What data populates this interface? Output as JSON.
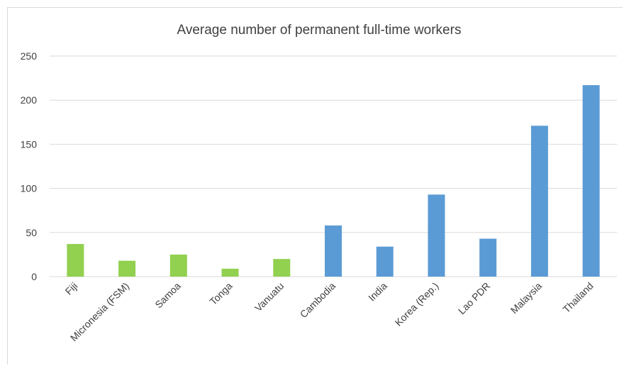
{
  "chart_data": {
    "type": "bar",
    "title": "Average number of permanent full-time workers",
    "xlabel": "",
    "ylabel": "",
    "ylim": [
      0,
      250
    ],
    "yticks": [
      0,
      50,
      100,
      150,
      200,
      250
    ],
    "grid": true,
    "legend": "none",
    "categories": [
      "Fiji",
      "Micronesia (FSM)",
      "Samoa",
      "Tonga",
      "Vanuatu",
      "Cambodia",
      "India",
      "Korea (Rep.)",
      "Lao PDR",
      "Malaysia",
      "Thailand"
    ],
    "values": [
      37,
      18,
      25,
      9,
      20,
      58,
      34,
      93,
      43,
      171,
      217
    ],
    "bar_colors": [
      "#92d050",
      "#92d050",
      "#92d050",
      "#92d050",
      "#92d050",
      "#5b9bd5",
      "#5b9bd5",
      "#5b9bd5",
      "#5b9bd5",
      "#5b9bd5",
      "#5b9bd5"
    ]
  }
}
